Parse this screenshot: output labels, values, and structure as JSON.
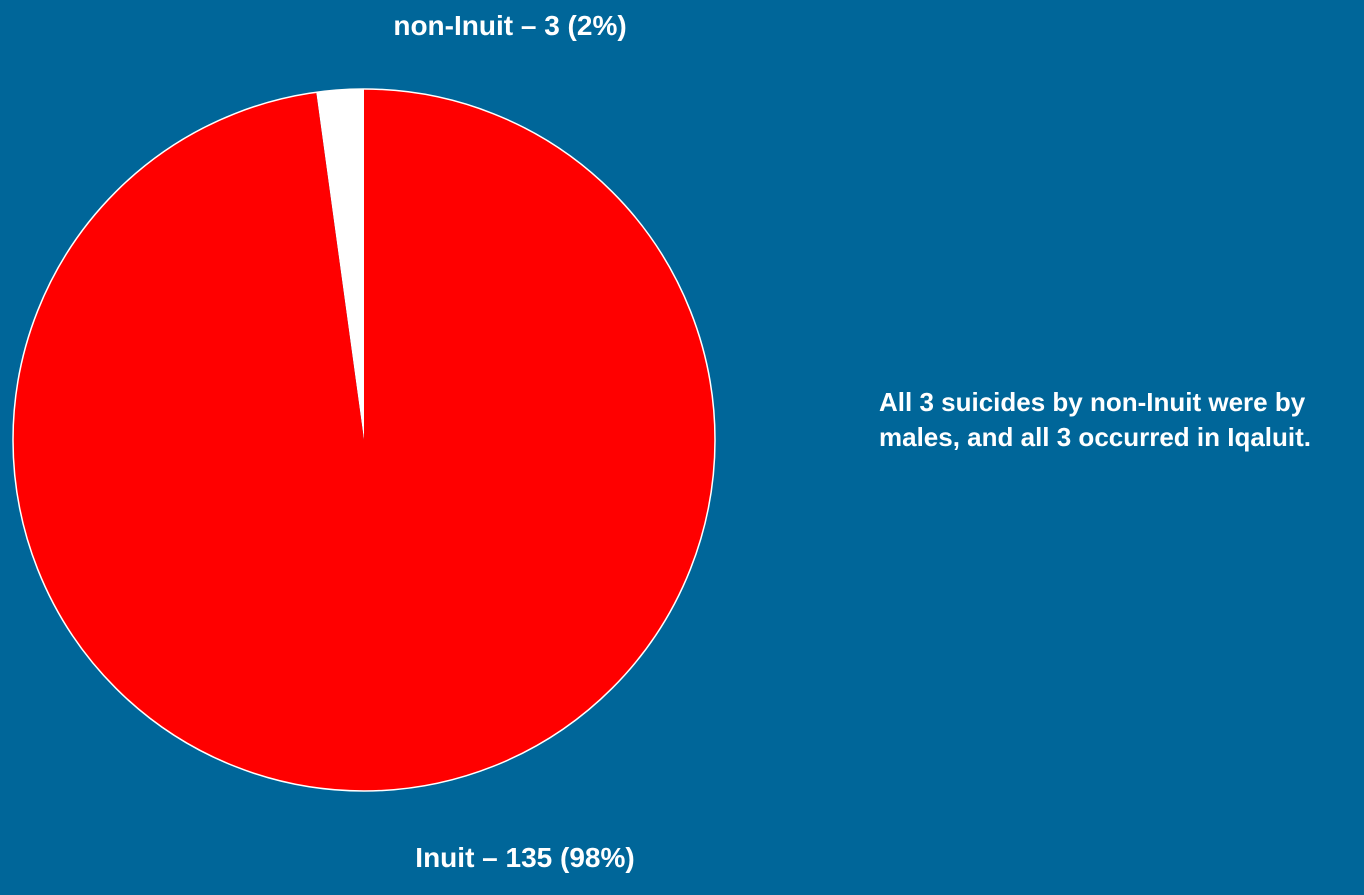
{
  "background_color": "#006699",
  "chart_data": {
    "type": "pie",
    "slices": [
      {
        "label": "non-Inuit – 3 (2%)",
        "value": 3,
        "percent": 2,
        "color": "#ffffff"
      },
      {
        "label": "Inuit – 135 (98%)",
        "value": 135,
        "percent": 98,
        "color": "#ff0000"
      }
    ],
    "start_angle_deg": 0,
    "direction": "counterclockwise",
    "outline_color": "#ffffff"
  },
  "annotation": {
    "text": "All 3 suicides by non-Inuit were by males, and all 3 occurred in Iqaluit."
  }
}
